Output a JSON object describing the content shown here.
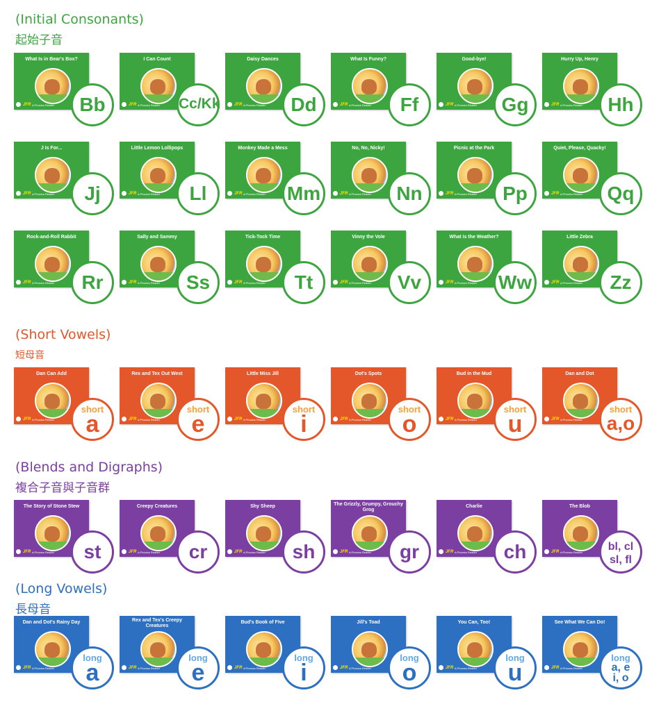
{
  "sections": {
    "initial": {
      "title": "(Initial Consonants)",
      "subtitle": "起始子音",
      "title_color": "#3da53f",
      "books": [
        {
          "title": "What Is in Bear's Box?",
          "letter": "Bb"
        },
        {
          "title": "I Can Count",
          "letter": "Cc/Kk"
        },
        {
          "title": "Daisy Dances",
          "letter": "Dd"
        },
        {
          "title": "What Is Funny?",
          "letter": "Ff"
        },
        {
          "title": "Good-bye!",
          "letter": "Gg"
        },
        {
          "title": "Hurry Up, Henry",
          "letter": "Hh"
        },
        {
          "title": "J Is For...",
          "letter": "Jj"
        },
        {
          "title": "Little Lemon Lollipops",
          "letter": "Ll"
        },
        {
          "title": "Monkey Made a Mess",
          "letter": "Mm"
        },
        {
          "title": "No, No, Nicky!",
          "letter": "Nn"
        },
        {
          "title": "Picnic at the Park",
          "letter": "Pp"
        },
        {
          "title": "Quiet, Please, Quacky!",
          "letter": "Qq"
        },
        {
          "title": "Rock-and-Roll Rabbit",
          "letter": "Rr"
        },
        {
          "title": "Sally and Sammy",
          "letter": "Ss"
        },
        {
          "title": "Tick-Tock Time",
          "letter": "Tt"
        },
        {
          "title": "Vinny the Vole",
          "letter": "Vv"
        },
        {
          "title": "What Is the Weather?",
          "letter": "Ww"
        },
        {
          "title": "Little Zebra",
          "letter": "Zz"
        }
      ]
    },
    "short": {
      "title": "(Short Vowels)",
      "subtitle": "短母音",
      "title_color": "#e4572a",
      "badge_word": "short",
      "books": [
        {
          "title": "Dan Can Add",
          "letter": "a"
        },
        {
          "title": "Rex and Tex Out West",
          "letter": "e"
        },
        {
          "title": "Little Miss Jill",
          "letter": "i"
        },
        {
          "title": "Dot's Spots",
          "letter": "o"
        },
        {
          "title": "Bud in the Mud",
          "letter": "u"
        },
        {
          "title": "Dan and Dot",
          "letter": "a,o"
        }
      ]
    },
    "blends": {
      "title": "(Blends and Digraphs)",
      "subtitle": "複合子音與子音群",
      "title_color": "#7b3ea1",
      "books": [
        {
          "title": "The Story of Stone Stew",
          "letter": "st"
        },
        {
          "title": "Creepy Creatures",
          "letter": "cr"
        },
        {
          "title": "Shy Sheep",
          "letter": "sh"
        },
        {
          "title": "The Grizzly, Grumpy, Grouchy Grog",
          "letter": "gr"
        },
        {
          "title": "Charlie",
          "letter": "ch"
        },
        {
          "title": "The Blob",
          "letter": "bl, cl sl, fl"
        }
      ]
    },
    "long": {
      "title": "(Long Vowels)",
      "subtitle": "長母音",
      "title_color": "#2d6fc0",
      "badge_word": "long",
      "books": [
        {
          "title": "Dan and Dot's Rainy Day",
          "letter": "a"
        },
        {
          "title": "Rex and Tex's Creepy Creatures",
          "letter": "e"
        },
        {
          "title": "Bud's Book of Five",
          "letter": "i"
        },
        {
          "title": "Jill's Toad",
          "letter": "o"
        },
        {
          "title": "You Can, Too!",
          "letter": "u"
        },
        {
          "title": "See What We Can Do!",
          "letter": "a, e i, o"
        }
      ]
    }
  },
  "cover_logo": "JFR",
  "cover_publisher": "A Phonics Reader"
}
